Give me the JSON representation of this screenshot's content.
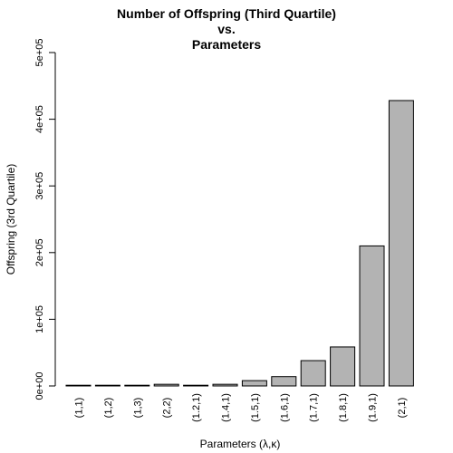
{
  "chart_data": {
    "type": "bar",
    "title": "Number of Offspring (Third Quartile)",
    "title_line2": "vs.",
    "title_line3": "Parameters",
    "xlabel": "Parameters (λ,κ)",
    "ylabel": "Offspring (3rd Quartile)",
    "categories": [
      "(1,1)",
      "(1,2)",
      "(1,3)",
      "(2,2)",
      "(1.2,1)",
      "(1.4,1)",
      "(1.5,1)",
      "(1.6,1)",
      "(1.7,1)",
      "(1.8,1)",
      "(1.9,1)",
      "(2,1)"
    ],
    "values": [
      200,
      300,
      300,
      2500,
      1000,
      2500,
      8000,
      14000,
      38000,
      58500,
      210000,
      428000
    ],
    "ylim": [
      0,
      500000
    ],
    "yticks": [
      0,
      100000,
      200000,
      300000,
      400000,
      500000
    ],
    "ytick_labels": [
      "0e+00",
      "1e+05",
      "2e+05",
      "3e+05",
      "4e+05",
      "5e+05"
    ],
    "bar_color": "#b3b3b3",
    "grid": false,
    "legend": "none"
  }
}
